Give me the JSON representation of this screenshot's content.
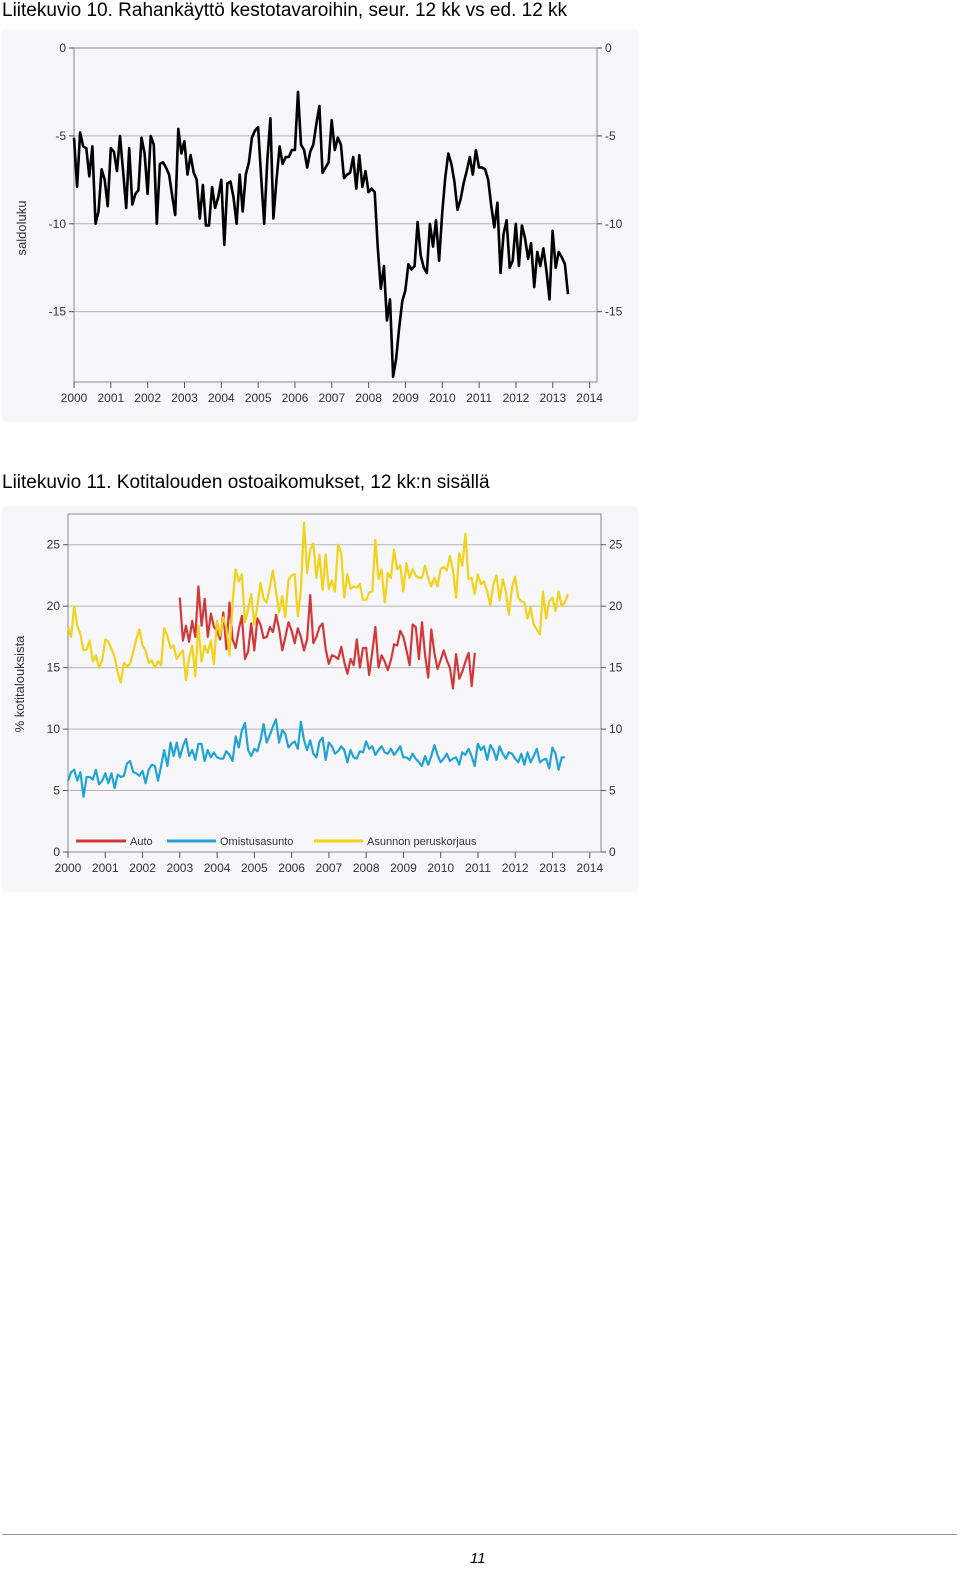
{
  "page": {
    "number": "11"
  },
  "figures": [
    {
      "title": "Liitekuvio 10. Rahankäyttö kestotavaroihin, seur. 12 kk vs ed. 12 kk"
    },
    {
      "title": "Liitekuvio 11. Kotitalouden ostoaikomukset, 12 kk:n sisällä"
    }
  ],
  "chart_data": [
    {
      "type": "line",
      "ylabel": "saldoluku",
      "ylim": [
        -19,
        0
      ],
      "yticks": [
        "0",
        "-5",
        "-10",
        "-15"
      ],
      "ytick_values": [
        0,
        -5,
        -10,
        -15
      ],
      "xlim": [
        2000,
        2014.2
      ],
      "xtick_labels": [
        "2000",
        "2001",
        "2002",
        "2003",
        "2004",
        "2005",
        "2006",
        "2007",
        "2008",
        "2009",
        "2010",
        "2011",
        "2012",
        "2013",
        "2014"
      ],
      "x_start": 2000.0,
      "x_step": 0.0833,
      "series": [
        {
          "name": "saldoluku",
          "color": "#000000",
          "values": [
            -5.1,
            -7.9,
            -4.8,
            -5.6,
            -5.7,
            -7.3,
            -5.6,
            -10.0,
            -9.3,
            -6.9,
            -7.5,
            -9.0,
            -5.7,
            -5.9,
            -7.0,
            -5.0,
            -7.0,
            -9.1,
            -5.7,
            -8.9,
            -8.3,
            -8.1,
            -5.1,
            -6.0,
            -8.3,
            -5.0,
            -5.5,
            -10.0,
            -6.6,
            -6.5,
            -6.8,
            -7.2,
            -8.4,
            -9.5,
            -4.6,
            -6.0,
            -5.3,
            -7.2,
            -6.1,
            -7.1,
            -7.5,
            -9.7,
            -7.8,
            -10.1,
            -10.1,
            -7.9,
            -9.1,
            -8.5,
            -7.5,
            -11.2,
            -7.7,
            -7.6,
            -8.5,
            -10.0,
            -7.2,
            -9.3,
            -7.2,
            -6.5,
            -5.1,
            -4.7,
            -4.5,
            -7.3,
            -10.0,
            -6.4,
            -4.0,
            -9.7,
            -7.5,
            -5.6,
            -6.6,
            -6.2,
            -6.2,
            -5.8,
            -5.8,
            -2.5,
            -5.5,
            -5.8,
            -6.8,
            -5.9,
            -5.5,
            -4.3,
            -3.3,
            -7.1,
            -6.8,
            -6.5,
            -4.1,
            -5.8,
            -5.1,
            -5.5,
            -7.4,
            -7.2,
            -7.1,
            -6.2,
            -8.0,
            -6.1,
            -7.9,
            -7.0,
            -8.2,
            -8.0,
            -8.2,
            -11.3,
            -13.7,
            -12.4,
            -15.5,
            -14.3,
            -18.7,
            -17.7,
            -15.9,
            -14.4,
            -13.8,
            -12.3,
            -12.6,
            -12.4,
            -9.9,
            -11.8,
            -12.5,
            -12.8,
            -10.0,
            -11.3,
            -9.8,
            -12.1,
            -9.4,
            -7.4,
            -6.0,
            -6.6,
            -7.6,
            -9.2,
            -8.6,
            -7.7,
            -7.0,
            -6.2,
            -7.2,
            -5.8,
            -6.8,
            -6.8,
            -6.9,
            -7.5,
            -9.0,
            -10.2,
            -8.8,
            -12.8,
            -10.6,
            -9.8,
            -12.5,
            -12.1,
            -10.0,
            -12.4,
            -10.1,
            -10.8,
            -12.0,
            -11.1,
            -13.6,
            -11.6,
            -12.4,
            -11.4,
            -12.7,
            -14.3,
            -10.4,
            -12.5,
            -11.6,
            -11.9,
            -12.3,
            -14.0
          ]
        }
      ]
    },
    {
      "type": "line",
      "ylabel": "% kotitalouksista",
      "ylim": [
        0,
        27.5
      ],
      "yticks": [
        "0",
        "5",
        "10",
        "15",
        "20",
        "25"
      ],
      "ytick_values": [
        0,
        5,
        10,
        15,
        20,
        25
      ],
      "xlim": [
        2000,
        2014.3
      ],
      "xtick_labels": [
        "2000",
        "2001",
        "2002",
        "2003",
        "2004",
        "2005",
        "2006",
        "2007",
        "2008",
        "2009",
        "2010",
        "2011",
        "2012",
        "2013",
        "2014"
      ],
      "x_start": 2000.0,
      "x_step": 0.0833,
      "legend": [
        "Auto",
        "Omistusasunto",
        "Asunnon peruskorjaus"
      ],
      "legend_position": "bottom",
      "series": [
        {
          "name": "Auto",
          "color": "#d2383a",
          "x_start": 2003.0,
          "values": [
            20.7,
            17.2,
            18.4,
            17.1,
            18.8,
            17.5,
            21.6,
            18.4,
            20.6,
            17.5,
            19.4,
            18.3,
            18.0,
            17.3,
            19.5,
            16.5,
            20.3,
            17.3,
            16.6,
            18.1,
            19.2,
            15.7,
            16.3,
            18.6,
            16.4,
            19.0,
            18.5,
            17.4,
            17.5,
            18.3,
            17.9,
            19.3,
            18.1,
            16.4,
            17.5,
            18.7,
            18.0,
            17.0,
            18.2,
            17.5,
            16.4,
            17.3,
            20.9,
            17.0,
            17.5,
            18.3,
            18.6,
            16.5,
            15.3,
            16.0,
            15.9,
            15.7,
            16.7,
            15.4,
            14.5,
            15.7,
            15.2,
            17.3,
            15.0,
            16.6,
            16.6,
            14.4,
            16.3,
            18.3,
            15.0,
            16.0,
            15.5,
            14.8,
            15.6,
            16.9,
            16.8,
            18.0,
            17.5,
            16.4,
            15.2,
            18.5,
            18.3,
            15.7,
            18.7,
            16.0,
            14.2,
            18.1,
            16.2,
            14.9,
            15.6,
            16.4,
            15.6,
            15.0,
            13.3,
            16.1,
            14.1,
            14.7,
            15.5,
            16.2,
            13.5,
            16.2
          ]
        },
        {
          "name": "Omistusasunto",
          "color": "#22a3d6",
          "values": [
            5.8,
            6.5,
            6.7,
            5.8,
            6.5,
            4.5,
            6.1,
            6.1,
            5.9,
            6.7,
            5.5,
            5.8,
            6.4,
            5.6,
            6.4,
            5.2,
            6.3,
            6.1,
            6.2,
            7.2,
            7.4,
            6.5,
            6.4,
            6.2,
            6.6,
            5.6,
            6.7,
            7.1,
            7.0,
            5.8,
            7.0,
            8.3,
            7.0,
            8.9,
            7.8,
            8.9,
            7.7,
            8.6,
            9.2,
            7.8,
            8.3,
            7.5,
            8.8,
            8.8,
            7.4,
            8.3,
            7.7,
            8.1,
            7.7,
            7.6,
            7.6,
            8.2,
            7.9,
            7.4,
            9.4,
            8.5,
            9.9,
            10.5,
            8.3,
            7.8,
            8.4,
            8.2,
            9.1,
            10.4,
            8.9,
            9.5,
            10.2,
            10.8,
            8.9,
            9.9,
            9.6,
            8.5,
            8.8,
            9.0,
            8.4,
            10.6,
            9.1,
            8.3,
            9.1,
            8.0,
            7.7,
            9.0,
            9.3,
            7.5,
            8.9,
            8.6,
            8.0,
            8.2,
            8.6,
            8.3,
            7.3,
            8.3,
            7.7,
            7.6,
            8.2,
            8.1,
            9.0,
            8.4,
            8.6,
            7.9,
            8.3,
            8.6,
            8.1,
            8.0,
            8.4,
            7.9,
            8.2,
            8.6,
            7.7,
            7.7,
            7.5,
            8.0,
            7.6,
            7.3,
            7.0,
            7.8,
            7.1,
            7.8,
            8.7,
            7.9,
            7.3,
            7.6,
            8.0,
            7.4,
            7.6,
            7.7,
            7.1,
            8.1,
            7.9,
            8.4,
            7.8,
            7.0,
            8.8,
            8.3,
            8.6,
            7.5,
            8.7,
            8.3,
            7.5,
            8.6,
            8.0,
            7.6,
            8.1,
            8.0,
            7.6,
            7.3,
            8.0,
            7.1,
            8.1,
            7.3,
            7.8,
            8.4,
            7.3,
            7.5,
            7.6,
            6.8,
            8.5,
            8.0,
            6.7,
            7.7,
            7.7
          ]
        },
        {
          "name": "Asunnon peruskorjaus",
          "color": "#f2d21a",
          "values": [
            18.3,
            17.5,
            20.0,
            18.4,
            17.7,
            16.4,
            16.5,
            17.2,
            15.5,
            16.0,
            15.0,
            15.6,
            17.3,
            17.1,
            16.5,
            15.9,
            14.6,
            13.8,
            15.4,
            15.1,
            15.3,
            16.3,
            17.3,
            18.1,
            16.8,
            16.4,
            15.4,
            15.6,
            15.0,
            15.5,
            15.2,
            18.2,
            17.6,
            16.6,
            16.8,
            15.7,
            16.1,
            16.4,
            14.0,
            15.8,
            16.8,
            14.3,
            18.4,
            15.5,
            16.8,
            16.2,
            17.2,
            15.3,
            18.8,
            17.6,
            19.1,
            18.3,
            16.0,
            20.3,
            23.0,
            22.0,
            22.6,
            18.7,
            19.7,
            21.0,
            18.5,
            20.0,
            21.9,
            20.6,
            20.3,
            21.5,
            22.9,
            21.2,
            19.5,
            20.8,
            19.1,
            22.1,
            22.5,
            22.6,
            19.2,
            21.3,
            26.8,
            22.7,
            24.6,
            25.1,
            22.3,
            24.2,
            21.3,
            24.2,
            21.4,
            22.1,
            21.2,
            25.0,
            24.3,
            20.7,
            22.6,
            21.4,
            21.6,
            21.5,
            21.8,
            20.5,
            20.5,
            21.1,
            21.2,
            25.4,
            22.2,
            23.0,
            20.3,
            22.7,
            22.3,
            24.6,
            23.0,
            23.3,
            21.2,
            23.5,
            22.3,
            23.0,
            22.5,
            22.3,
            22.3,
            23.3,
            22.3,
            21.6,
            22.3,
            21.6,
            23.0,
            23.2,
            22.9,
            24.1,
            22.9,
            20.7,
            24.3,
            23.3,
            25.9,
            22.2,
            22.3,
            21.0,
            22.6,
            21.8,
            22.0,
            21.2,
            20.1,
            21.8,
            22.5,
            20.5,
            22.2,
            21.2,
            19.3,
            21.5,
            22.4,
            20.7,
            20.4,
            20.3,
            19.0,
            19.9,
            18.5,
            18.1,
            17.7,
            21.2,
            19.0,
            20.4,
            20.7,
            19.6,
            21.2,
            20.0,
            20.3,
            21.0
          ]
        }
      ]
    }
  ]
}
